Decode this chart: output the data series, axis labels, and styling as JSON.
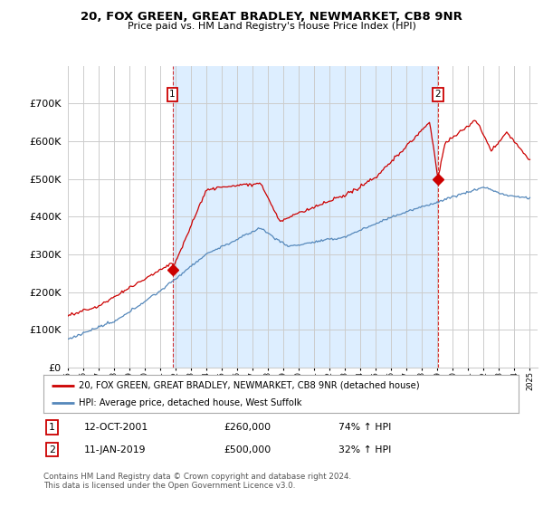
{
  "title": "20, FOX GREEN, GREAT BRADLEY, NEWMARKET, CB8 9NR",
  "subtitle": "Price paid vs. HM Land Registry's House Price Index (HPI)",
  "legend_line1": "20, FOX GREEN, GREAT BRADLEY, NEWMARKET, CB8 9NR (detached house)",
  "legend_line2": "HPI: Average price, detached house, West Suffolk",
  "annotation1_date": "12-OCT-2001",
  "annotation1_price": "£260,000",
  "annotation1_hpi": "74% ↑ HPI",
  "annotation2_date": "11-JAN-2019",
  "annotation2_price": "£500,000",
  "annotation2_hpi": "32% ↑ HPI",
  "footer": "Contains HM Land Registry data © Crown copyright and database right 2024.\nThis data is licensed under the Open Government Licence v3.0.",
  "red_color": "#cc0000",
  "blue_color": "#5588bb",
  "shade_color": "#ddeeff",
  "background_color": "#ffffff",
  "grid_color": "#cccccc",
  "ylim": [
    0,
    800000
  ],
  "yticks": [
    0,
    100000,
    200000,
    300000,
    400000,
    500000,
    600000,
    700000
  ],
  "ytick_labels": [
    "£0",
    "£100K",
    "£200K",
    "£300K",
    "£400K",
    "£500K",
    "£600K",
    "£700K"
  ],
  "sale1_x": 2001.79,
  "sale1_y": 260000,
  "sale2_x": 2019.03,
  "sale2_y": 500000,
  "xmin": 1995.4,
  "xmax": 2025.5
}
